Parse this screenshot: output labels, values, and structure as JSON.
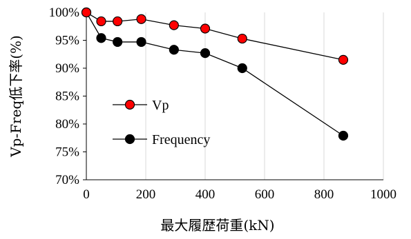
{
  "chart_data": {
    "type": "line",
    "title": "",
    "xlabel": "最大履歴荷重(kN)",
    "ylabel": "Vp-Freq低下率(%)",
    "xlim": [
      0,
      1000
    ],
    "ylim": [
      70,
      100
    ],
    "x_ticks": [
      0,
      200,
      400,
      600,
      800,
      1000
    ],
    "y_ticks": [
      70,
      75,
      80,
      85,
      90,
      95,
      100
    ],
    "x_tick_labels": [
      "0",
      "200",
      "400",
      "600",
      "800",
      "1000"
    ],
    "y_tick_labels": [
      "70%",
      "75%",
      "80%",
      "85%",
      "90%",
      "95%",
      "100%"
    ],
    "grid": "vertical",
    "legend_position": "center-left",
    "series": [
      {
        "name": "Vp",
        "marker_color": "#ff0000",
        "line_color": "#000000",
        "x": [
          0,
          50,
          105,
          185,
          295,
          400,
          525,
          865
        ],
        "y": [
          100,
          98.4,
          98.4,
          98.8,
          97.7,
          97.1,
          95.3,
          91.5
        ]
      },
      {
        "name": "Frequency",
        "marker_color": "#000000",
        "line_color": "#000000",
        "x": [
          0,
          50,
          105,
          185,
          295,
          400,
          525,
          865
        ],
        "y": [
          100,
          95.4,
          94.7,
          94.7,
          93.3,
          92.7,
          90.0,
          77.9
        ]
      }
    ]
  }
}
